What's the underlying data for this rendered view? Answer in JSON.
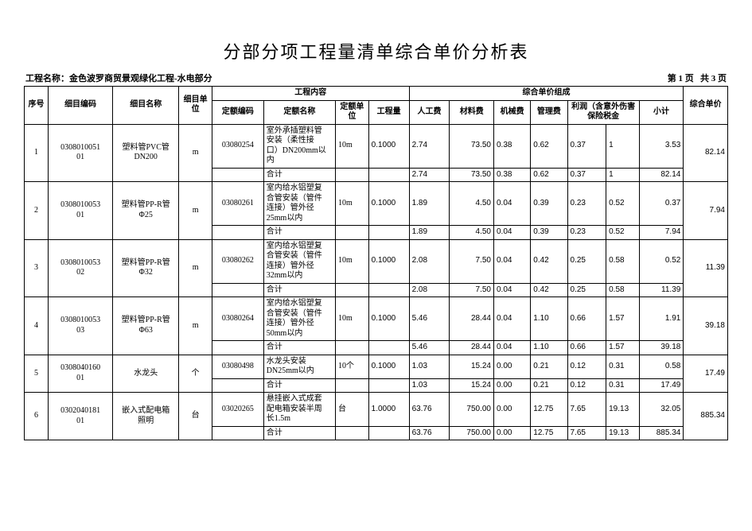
{
  "title": "分部分项工程量清单综合单价分析表",
  "project_label": "工程名称：",
  "project_name": "金色波罗商贸景观绿化工程-水电部分",
  "page_left": "第 1 页",
  "page_right": "共 3 页",
  "head": {
    "seq": "序号",
    "item_code": "细目编码",
    "item_name": "细目名称",
    "item_unit": "细目单位",
    "work_content": "工程内容",
    "comp_price": "综合单价组成",
    "d_code": "定额编码",
    "d_name": "定额名称",
    "d_unit": "定额单位",
    "qty": "工程量",
    "labor": "人工费",
    "material": "材料费",
    "machine": "机械费",
    "manage": "管理费",
    "profit_full": "利润（含意外伤害保险税金",
    "subtotal": "小计",
    "total": "综合单价"
  },
  "sum_label": "合计",
  "rows": [
    {
      "seq": "1",
      "code": "0308010051\n01",
      "name": "塑料管PVC管\nDN200",
      "unit": "m",
      "dcode": "03080254",
      "dname": "室外承插塑料管\n安装（柔性接\n口）DN200mm以内",
      "dunit": "10m",
      "qty": "0.1000",
      "lab": "2.74",
      "mat": "73.50",
      "mach": "0.38",
      "mgmt": "0.62",
      "prof": "0.37",
      "risk": "1",
      "sub": "3.53",
      "rowtot": "82.14",
      "tot": "82.14",
      "s_lab": "2.74",
      "s_mat": "73.50",
      "s_mach": "0.38",
      "s_mgmt": "0.62",
      "s_prof": "0.37",
      "s_risk": "1",
      "s_sub": "3.53",
      "s_rowtot": "82.14"
    },
    {
      "seq": "2",
      "code": "0308010053\n01",
      "name": "塑料管PP-R管\nΦ25",
      "unit": "m",
      "dcode": "03080261",
      "dname": "室内给水铝塑复\n合管安装（管件\n连接）管外径\n25mm以内",
      "dunit": "10m",
      "qty": "0.1000",
      "lab": "1.89",
      "mat": "4.50",
      "mach": "0.04",
      "mgmt": "0.39",
      "prof": "0.23",
      "risk": "0.52",
      "sub": "0.37",
      "rowtot": "7.94",
      "tot": "7.94",
      "s_lab": "1.89",
      "s_mat": "4.50",
      "s_mach": "0.04",
      "s_mgmt": "0.39",
      "s_prof": "0.23",
      "s_risk": "0.52",
      "s_sub": "0.37",
      "s_rowtot": "7.94"
    },
    {
      "seq": "3",
      "code": "0308010053\n02",
      "name": "塑料管PP-R管\nΦ32",
      "unit": "m",
      "dcode": "03080262",
      "dname": "室内给水铝塑复\n合管安装（管件\n连接）管外径\n32mm以内",
      "dunit": "10m",
      "qty": "0.1000",
      "lab": "2.08",
      "mat": "7.50",
      "mach": "0.04",
      "mgmt": "0.42",
      "prof": "0.25",
      "risk": "0.58",
      "sub": "0.52",
      "rowtot": "11.39",
      "tot": "11.39",
      "s_lab": "2.08",
      "s_mat": "7.50",
      "s_mach": "0.04",
      "s_mgmt": "0.42",
      "s_prof": "0.25",
      "s_risk": "0.58",
      "s_sub": "0.52",
      "s_rowtot": "11.39"
    },
    {
      "seq": "4",
      "code": "0308010053\n03",
      "name": "塑料管PP-R管\nΦ63",
      "unit": "m",
      "dcode": "03080264",
      "dname": "室内给水铝塑复\n合管安装（管件\n连接）管外径\n50mm以内",
      "dunit": "10m",
      "qty": "0.1000",
      "lab": "5.46",
      "mat": "28.44",
      "mach": "0.04",
      "mgmt": "1.10",
      "prof": "0.66",
      "risk": "1.57",
      "sub": "1.91",
      "rowtot": "39.18",
      "tot": "39.18",
      "s_lab": "5.46",
      "s_mat": "28.44",
      "s_mach": "0.04",
      "s_mgmt": "1.10",
      "s_prof": "0.66",
      "s_risk": "1.57",
      "s_sub": "1.91",
      "s_rowtot": "39.18"
    },
    {
      "seq": "5",
      "code": "0308040160\n01",
      "name": "水龙头",
      "unit": "个",
      "dcode": "03080498",
      "dname": "水龙头安装\nDN25mm以内",
      "dunit": "10个",
      "qty": "0.1000",
      "lab": "1.03",
      "mat": "15.24",
      "mach": "0.00",
      "mgmt": "0.21",
      "prof": "0.12",
      "risk": "0.31",
      "sub": "0.58",
      "rowtot": "17.49",
      "tot": "17.49",
      "s_lab": "1.03",
      "s_mat": "15.24",
      "s_mach": "0.00",
      "s_mgmt": "0.21",
      "s_prof": "0.12",
      "s_risk": "0.31",
      "s_sub": "0.58",
      "s_rowtot": "17.49"
    },
    {
      "seq": "6",
      "code": "0302040181\n01",
      "name": "嵌入式配电箱\n照明",
      "unit": "台",
      "dcode": "03020265",
      "dname": "悬挂嵌入式成套\n配电箱安装半周\n长1.5m",
      "dunit": "台",
      "qty": "1.0000",
      "lab": "63.76",
      "mat": "750.00",
      "mach": "0.00",
      "mgmt": "12.75",
      "prof": "7.65",
      "risk": "19.13",
      "sub": "32.05",
      "rowtot": "885.34",
      "tot": "885.34",
      "s_lab": "63.76",
      "s_mat": "750.00",
      "s_mach": "0.00",
      "s_mgmt": "12.75",
      "s_prof": "7.65",
      "s_risk": "19.13",
      "s_sub": "32.05",
      "s_rowtot": "885.34"
    }
  ]
}
